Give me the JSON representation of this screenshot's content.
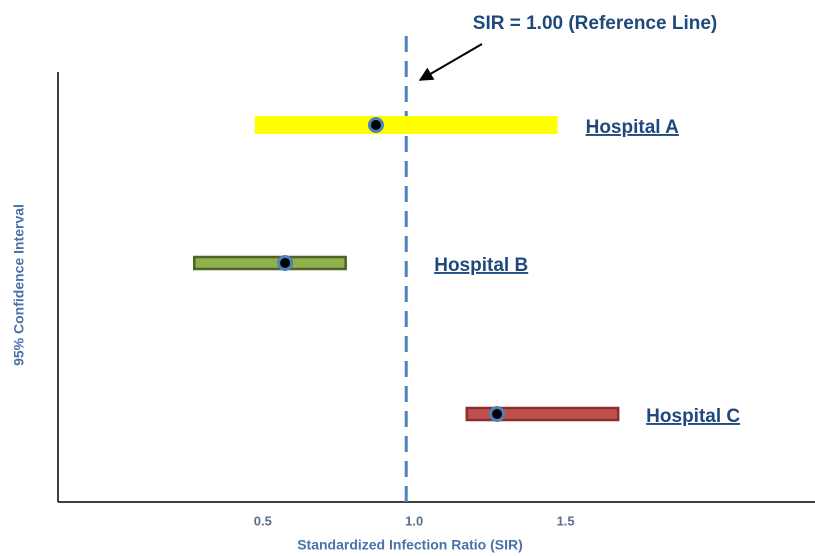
{
  "chart_data": {
    "type": "interval",
    "annotation": "SIR = 1.00 (Reference Line)",
    "xlabel": "Standardized Infection Ratio (SIR)",
    "ylabel": "95% Confidence Interval",
    "categories": [
      "Hospital A",
      "Hospital B",
      "Hospital C"
    ],
    "values": [
      0.9,
      0.6,
      1.3
    ],
    "lower": [
      0.5,
      0.3,
      1.2
    ],
    "upper": [
      1.5,
      0.8,
      1.7
    ],
    "colors": [
      "#ffff00",
      "#8fb04a",
      "#c0504d"
    ],
    "reference_line": 1,
    "xlim": [
      -0.15,
      2.35
    ],
    "xticks": [
      0.5,
      {
        "value": 1,
        "label": "1.0"
      },
      1.5
    ]
  }
}
